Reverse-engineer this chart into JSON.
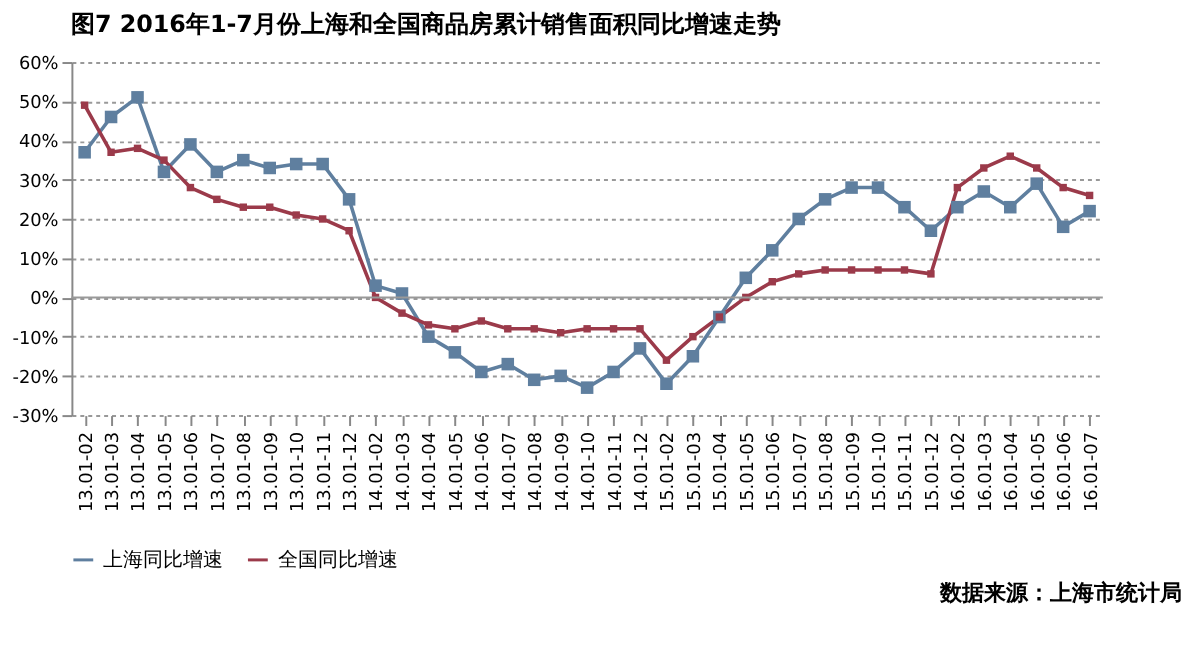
{
  "chart_data": {
    "type": "line",
    "title": "图7  2016年1-7月份上海和全国商品房累计销售面积同比增速走势",
    "categories": [
      "13.01-02",
      "13.01-03",
      "13.01-04",
      "13.01-05",
      "13.01-06",
      "13.01-07",
      "13.01-08",
      "13.01-09",
      "13.01-10",
      "13.01-11",
      "13.01-12",
      "14.01-02",
      "14.01-03",
      "14.01-04",
      "14.01-05",
      "14.01-06",
      "14.01-07",
      "14.01-08",
      "14.01-09",
      "14.01-10",
      "14.01-11",
      "14.01-12",
      "15.01-02",
      "15.01-03",
      "15.01-04",
      "15.01-05",
      "15.01-06",
      "15.01-07",
      "15.01-08",
      "15.01-09",
      "15.01-10",
      "15.01-11",
      "15.01-12",
      "16.01-02",
      "16.01-03",
      "16.01-04",
      "16.01-05",
      "16.01-06",
      "16.01-07"
    ],
    "series": [
      {
        "name": "上海同比增速",
        "color": "#5f7f9f",
        "values": [
          37,
          46,
          51,
          32,
          39,
          32,
          35,
          33,
          34,
          34,
          25,
          3,
          1,
          -10,
          -14,
          -19,
          -17,
          -21,
          -20,
          -23,
          -19,
          -13,
          -22,
          -15,
          -5,
          5,
          12,
          20,
          25,
          28,
          28,
          23,
          17,
          23,
          27,
          23,
          29,
          18,
          22
        ]
      },
      {
        "name": "全国同比增速",
        "color": "#9b3a4a",
        "values": [
          49,
          37,
          38,
          35,
          28,
          25,
          23,
          23,
          21,
          20,
          17,
          0,
          -4,
          -7,
          -8,
          -6,
          -8,
          -8,
          -9,
          -8,
          -8,
          -8,
          -16,
          -10,
          -5,
          0,
          4,
          6,
          7,
          7,
          7,
          7,
          6,
          28,
          33,
          36,
          33,
          28,
          26
        ]
      }
    ],
    "ylim": [
      -30,
      60
    ],
    "yticks": [
      {
        "value": -30,
        "label": "-30%"
      },
      {
        "value": -20,
        "label": "-20%"
      },
      {
        "value": -10,
        "label": "-10%"
      },
      {
        "value": 0,
        "label": "0%"
      },
      {
        "value": 10,
        "label": "10%"
      },
      {
        "value": 20,
        "label": "20%"
      },
      {
        "value": 30,
        "label": "30%"
      },
      {
        "value": 40,
        "label": "40%"
      },
      {
        "value": 50,
        "label": "50%"
      },
      {
        "value": 60,
        "label": "60%"
      }
    ],
    "grid": "y",
    "legend": "bottom",
    "marker": "square",
    "line_style": "solid",
    "annotations": [
      "数据来源：上海市统计局"
    ]
  }
}
